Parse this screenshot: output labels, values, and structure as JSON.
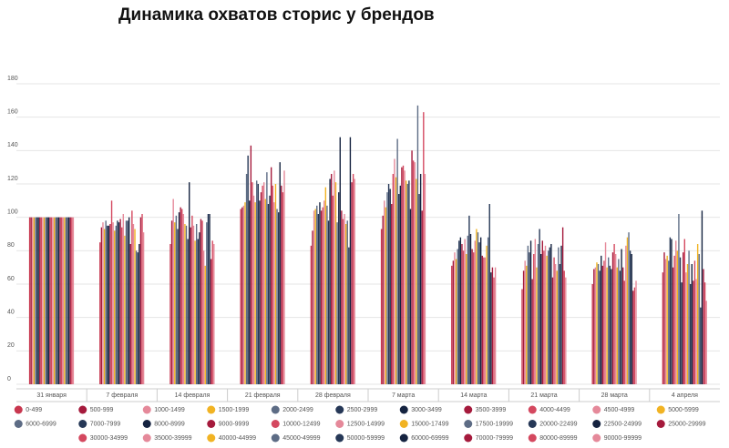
{
  "chart_data": {
    "type": "bar",
    "title": "Динамика охватов сторис у брендов",
    "categories": [
      "31 января",
      "7 февраля",
      "14 февраля",
      "21 февраля",
      "28 февраля",
      "7 марта",
      "14 марта",
      "21 марта",
      "28 марта",
      "4 апреля"
    ],
    "ylim": [
      0,
      180
    ],
    "yticks": [
      0,
      20,
      40,
      60,
      80,
      100,
      120,
      140,
      160,
      180
    ],
    "grid": true,
    "series": [
      {
        "name": "0-499",
        "color": "#c8374f",
        "values": [
          100,
          85,
          84,
          105,
          83,
          93,
          71,
          57,
          60,
          67
        ]
      },
      {
        "name": "500-999",
        "color": "#a51a3c",
        "values": [
          100,
          94,
          98,
          106,
          92,
          101,
          74,
          68,
          69,
          79
        ]
      },
      {
        "name": "1000-1499",
        "color": "#e5899a",
        "values": [
          100,
          97,
          111,
          107,
          104,
          110,
          79,
          74,
          70,
          75
        ]
      },
      {
        "name": "1500-1999",
        "color": "#f1b323",
        "values": [
          100,
          93,
          97,
          109,
          105,
          106,
          75,
          71,
          73,
          77
        ]
      },
      {
        "name": "2000-2499",
        "color": "#5d6c85",
        "values": [
          100,
          98,
          101,
          126,
          107,
          115,
          81,
          83,
          72,
          74
        ]
      },
      {
        "name": "2500-2999",
        "color": "#263857",
        "values": [
          100,
          95,
          93,
          137,
          102,
          120,
          86,
          79,
          68,
          88
        ]
      },
      {
        "name": "3000-3499",
        "color": "#152340",
        "values": [
          100,
          95,
          103,
          110,
          109,
          117,
          88,
          86,
          77,
          87
        ]
      },
      {
        "name": "3500-3999",
        "color": "#a51a3c",
        "values": [
          100,
          96,
          106,
          143,
          104,
          108,
          84,
          63,
          71,
          70
        ]
      },
      {
        "name": "4000-4499",
        "color": "#d4485f",
        "values": [
          100,
          110,
          105,
          121,
          106,
          126,
          80,
          78,
          74,
          77
        ]
      },
      {
        "name": "4500-4999",
        "color": "#e5899a",
        "values": [
          100,
          97,
          102,
          113,
          110,
          135,
          87,
          87,
          85,
          86
        ]
      },
      {
        "name": "5000-5999",
        "color": "#f1b323",
        "values": [
          100,
          92,
          96,
          109,
          118,
          124,
          78,
          70,
          70,
          80
        ]
      },
      {
        "name": "6000-6999",
        "color": "#5d6c85",
        "values": [
          100,
          95,
          95,
          122,
          107,
          147,
          89,
          84,
          76,
          102
        ]
      },
      {
        "name": "7000-7999",
        "color": "#263857",
        "values": [
          100,
          98,
          87,
          120,
          98,
          114,
          101,
          93,
          71,
          76
        ]
      },
      {
        "name": "8000-8999",
        "color": "#152340",
        "values": [
          100,
          97,
          121,
          110,
          123,
          119,
          90,
          78,
          69,
          61
        ]
      },
      {
        "name": "9000-9999",
        "color": "#a51a3c",
        "values": [
          100,
          99,
          94,
          115,
          126,
          130,
          81,
          86,
          79,
          79
        ]
      },
      {
        "name": "10000-12499",
        "color": "#d4485f",
        "values": [
          100,
          94,
          101,
          119,
          113,
          131,
          79,
          80,
          84,
          87
        ]
      },
      {
        "name": "12500-14999",
        "color": "#e5899a",
        "values": [
          100,
          102,
          95,
          121,
          128,
          128,
          86,
          83,
          78,
          67
        ]
      },
      {
        "name": "15000-17499",
        "color": "#f1b323",
        "values": [
          100,
          89,
          86,
          111,
          121,
          122,
          93,
          77,
          70,
          72
        ]
      },
      {
        "name": "17500-19999",
        "color": "#5d6c85",
        "values": [
          100,
          98,
          96,
          127,
          97,
          120,
          91,
          80,
          75,
          80
        ]
      },
      {
        "name": "20000-22499",
        "color": "#263857",
        "values": [
          100,
          98,
          87,
          108,
          115,
          122,
          85,
          82,
          68,
          60
        ]
      },
      {
        "name": "22500-24999",
        "color": "#152340",
        "values": [
          100,
          100,
          91,
          113,
          148,
          105,
          88,
          84,
          81,
          72
        ]
      },
      {
        "name": "25000-29999",
        "color": "#a51a3c",
        "values": [
          100,
          84,
          99,
          130,
          104,
          140,
          77,
          64,
          70,
          62
        ]
      },
      {
        "name": "30000-34999",
        "color": "#d4485f",
        "values": [
          100,
          104,
          98,
          119,
          99,
          134,
          76,
          76,
          62,
          74
        ]
      },
      {
        "name": "35000-39999",
        "color": "#e5899a",
        "values": [
          100,
          96,
          80,
          109,
          102,
          133,
          76,
          72,
          83,
          63
        ]
      },
      {
        "name": "40000-44999",
        "color": "#f1b323",
        "values": [
          100,
          93,
          71,
          120,
          96,
          123,
          83,
          68,
          88,
          84
        ]
      },
      {
        "name": "45000-49999",
        "color": "#5d6c85",
        "values": [
          100,
          80,
          97,
          105,
          98,
          167,
          88,
          82,
          91,
          78
        ]
      },
      {
        "name": "50000-59999",
        "color": "#263857",
        "values": [
          100,
          79,
          102,
          103,
          82,
          114,
          108,
          72,
          80,
          46
        ]
      },
      {
        "name": "60000-69999",
        "color": "#152340",
        "values": [
          100,
          84,
          102,
          133,
          148,
          126,
          67,
          83,
          78,
          104
        ]
      },
      {
        "name": "70000-79999",
        "color": "#a51a3c",
        "values": [
          100,
          100,
          75,
          119,
          121,
          104,
          70,
          94,
          56,
          69
        ]
      },
      {
        "name": "80000-89999",
        "color": "#d4485f",
        "values": [
          100,
          102,
          86,
          115,
          126,
          163,
          64,
          68,
          58,
          61
        ]
      },
      {
        "name": "90000-99999",
        "color": "#e5899a",
        "values": [
          100,
          91,
          84,
          128,
          123,
          126,
          70,
          64,
          62,
          50
        ]
      }
    ]
  }
}
